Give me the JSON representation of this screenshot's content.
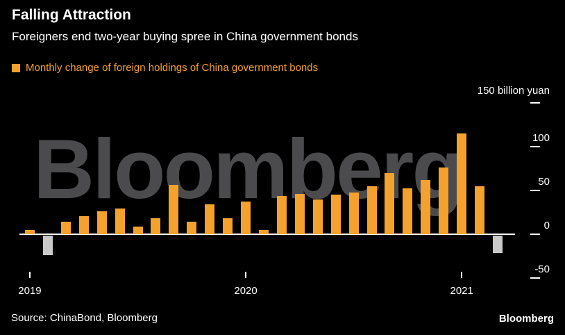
{
  "header": {
    "title": "Falling Attraction",
    "subtitle": "Foreigners end two-year buying spree in China government bonds"
  },
  "legend": {
    "label": "Monthly change of foreign holdings of China government bonds"
  },
  "axis": {
    "unit_label": "150 billion yuan"
  },
  "watermark": "Bloomberg",
  "footer": {
    "source": "Source: ChinaBond, Bloomberg",
    "brand": "Bloomberg"
  },
  "colors": {
    "background": "#000000",
    "positive_bar": "#f5a12d",
    "negative_bar": "#c9c9c9",
    "watermark": "#4b4b4e",
    "axis": "#ffffff",
    "text": "#ffffff"
  },
  "chart_data": {
    "type": "bar",
    "title": "Falling Attraction",
    "subtitle": "Foreigners end two-year buying spree in China government bonds",
    "series_name": "Monthly change of foreign holdings of China government bonds",
    "unit": "billion yuan",
    "x": [
      "2019-01",
      "2019-02",
      "2019-03",
      "2019-04",
      "2019-05",
      "2019-06",
      "2019-07",
      "2019-08",
      "2019-09",
      "2019-10",
      "2019-11",
      "2019-12",
      "2020-01",
      "2020-02",
      "2020-03",
      "2020-04",
      "2020-05",
      "2020-06",
      "2020-07",
      "2020-08",
      "2020-09",
      "2020-10",
      "2020-11",
      "2020-12",
      "2021-01",
      "2021-02",
      "2021-03"
    ],
    "values": [
      5,
      -22,
      14,
      21,
      26,
      29,
      9,
      18,
      56,
      14,
      34,
      18,
      37,
      5,
      44,
      46,
      40,
      45,
      48,
      55,
      70,
      52,
      62,
      76,
      115,
      55,
      -20
    ],
    "ylim": [
      -50,
      150
    ],
    "y_axis_ticks": [
      150,
      100,
      50,
      0,
      -50
    ],
    "x_year_ticks": [
      {
        "index": 0,
        "label": "2019"
      },
      {
        "index": 12,
        "label": "2020"
      },
      {
        "index": 24,
        "label": "2021"
      }
    ],
    "grid": false,
    "legend_position": "top-left",
    "note": "positive bars orange, negative bars gray"
  }
}
